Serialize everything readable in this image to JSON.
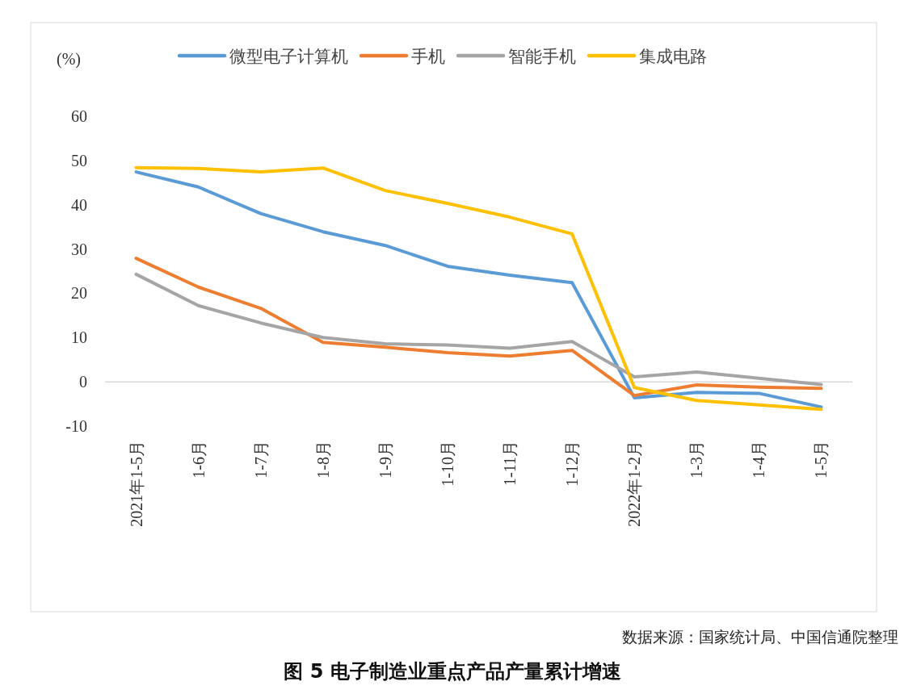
{
  "chart_data": {
    "type": "line",
    "title": "图 5  电子制造业重点产品产量累计增速",
    "ylabel": "(%)",
    "annotations": [
      "数据来源：国家统计局、中国信通院整理"
    ],
    "categories": [
      "2021年1-5月",
      "1-6月",
      "1-7月",
      "1-8月",
      "1-9月",
      "1-10月",
      "1-11月",
      "1-12月",
      "2022年1-2月",
      "1-3月",
      "1-4月",
      "1-5月"
    ],
    "ylim": [
      -10,
      60
    ],
    "yticks": [
      -10,
      0,
      10,
      20,
      30,
      40,
      50,
      60
    ],
    "legend": "top",
    "marker": "none",
    "line_style": "solid",
    "series": [
      {
        "name": "微型电子计算机",
        "color": "#5b9bd5",
        "values": [
          47.4,
          44.0,
          38.0,
          33.9,
          30.8,
          26.1,
          24.1,
          22.4,
          -3.6,
          -2.4,
          -2.6,
          -5.7
        ]
      },
      {
        "name": "手机",
        "color": "#ed7d31",
        "values": [
          27.9,
          21.4,
          16.6,
          8.9,
          7.8,
          6.6,
          5.8,
          7.1,
          -3.1,
          -0.7,
          -1.2,
          -1.5
        ]
      },
      {
        "name": "智能手机",
        "color": "#a5a5a5",
        "values": [
          24.3,
          17.2,
          13.3,
          10.0,
          8.6,
          8.3,
          7.6,
          9.1,
          1.1,
          2.2,
          0.8,
          -0.6
        ]
      },
      {
        "name": "集成电路",
        "color": "#ffc000",
        "values": [
          48.4,
          48.2,
          47.4,
          48.3,
          43.2,
          40.3,
          37.2,
          33.4,
          -1.3,
          -4.2,
          -5.2,
          -6.2
        ]
      }
    ]
  }
}
